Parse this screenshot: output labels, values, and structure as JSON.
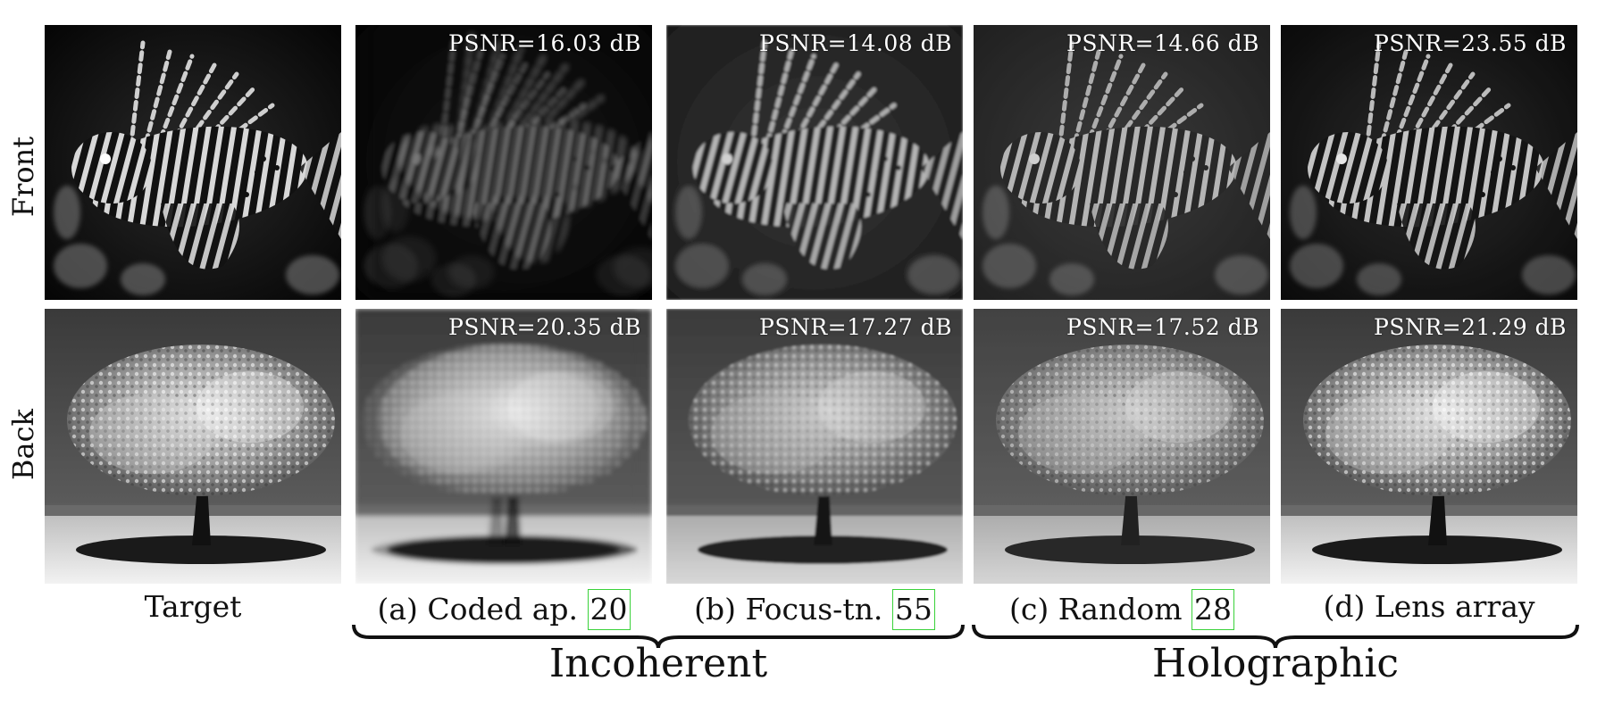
{
  "rows": [
    {
      "label": "Front"
    },
    {
      "label": "Back"
    }
  ],
  "columns": [
    {
      "caption": "Target",
      "cite": ""
    },
    {
      "caption": "(a) Coded ap.",
      "cite": "20"
    },
    {
      "caption": "(b) Focus-tn.",
      "cite": "55"
    },
    {
      "caption": "(c) Random",
      "cite": "28"
    },
    {
      "caption": "(d) Lens array",
      "cite": ""
    }
  ],
  "psnr": {
    "front": [
      "",
      "PSNR=16.03 dB",
      "PSNR=14.08 dB",
      "PSNR=14.66 dB",
      "PSNR=23.55 dB"
    ],
    "back": [
      "",
      "PSNR=20.35 dB",
      "PSNR=17.27 dB",
      "PSNR=17.52 dB",
      "PSNR=21.29 dB"
    ]
  },
  "groups": [
    {
      "label": "Incoherent"
    },
    {
      "label": "Holographic"
    }
  ],
  "image_content": {
    "front": "lionfish",
    "back": "tree"
  }
}
